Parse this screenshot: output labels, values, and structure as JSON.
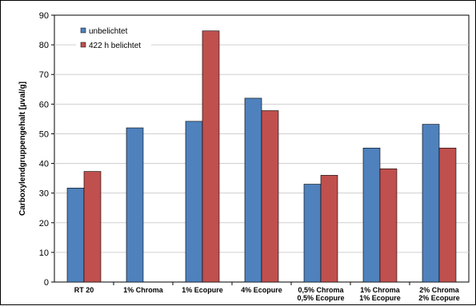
{
  "chart_data": {
    "type": "bar",
    "ylabel": "Carboxylendgruppengehalt [µval/g]",
    "xlabel": "",
    "ylim": [
      0,
      90
    ],
    "yticks": [
      0,
      10,
      20,
      30,
      40,
      50,
      60,
      70,
      80,
      90
    ],
    "grid": true,
    "legend_position": "top-left",
    "categories": [
      [
        "RT 20"
      ],
      [
        "1% Chroma"
      ],
      [
        "1% Ecopure"
      ],
      [
        "4% Ecopure"
      ],
      [
        "0,5% Chroma",
        "0,5% Ecopure"
      ],
      [
        "1% Chroma",
        "1% Ecopure"
      ],
      [
        "2% Chroma",
        "2% Ecopure"
      ]
    ],
    "series": [
      {
        "name": "unbelichtet",
        "color": "#4F81BD",
        "values": [
          31.7,
          52,
          54.2,
          62,
          33,
          45.2,
          53.2
        ]
      },
      {
        "name": "422 h belichtet",
        "color": "#C0504D",
        "values": [
          37.3,
          null,
          84.7,
          57.8,
          36,
          38.2,
          45.2
        ]
      }
    ]
  }
}
